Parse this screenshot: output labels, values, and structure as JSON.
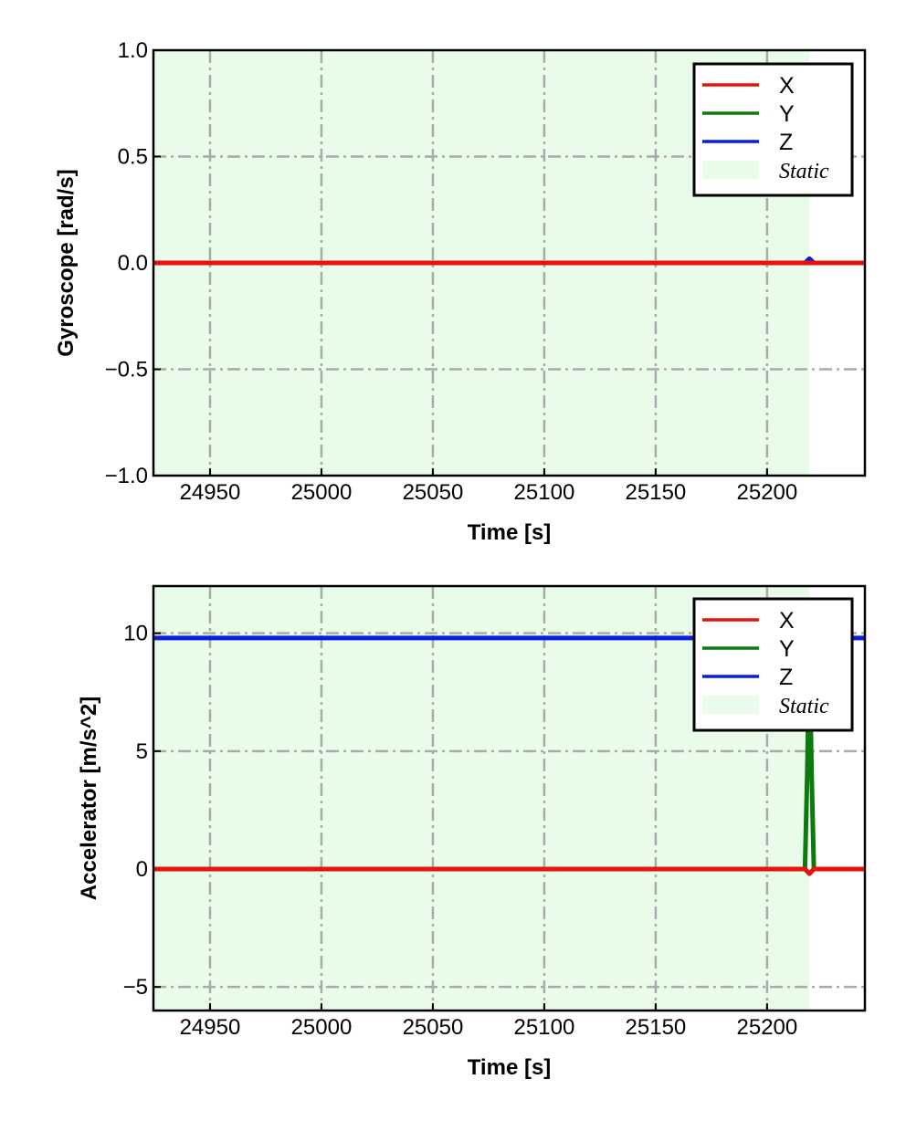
{
  "chart_data": [
    {
      "type": "line",
      "xlabel": "Time [s]",
      "ylabel": "Gyroscope [rad/s]",
      "xlim": [
        24924.6,
        25243.9
      ],
      "ylim": [
        -1.0,
        1.0
      ],
      "xticks": [
        24950,
        25000,
        25050,
        25100,
        25150,
        25200
      ],
      "xtick_labels": [
        "24950",
        "25000",
        "25050",
        "25100",
        "25150",
        "25200"
      ],
      "yticks": [
        -1.0,
        -0.5,
        0.0,
        0.5,
        1.0
      ],
      "ytick_labels": [
        "−1.0",
        "−0.5",
        "0.0",
        "0.5",
        "1.0"
      ],
      "grid": true,
      "legend_position": "top-right",
      "static_region": {
        "label": "Static",
        "x_start": 24924.6,
        "x_end": 25218.9,
        "color": "#e9fce9"
      },
      "x": [
        24925,
        25000,
        25100,
        25200,
        25217,
        25218,
        25219,
        25220,
        25221,
        25230,
        25244
      ],
      "series": [
        {
          "name": "X",
          "color": "#e8120c",
          "values": [
            0,
            0,
            0,
            0,
            0,
            0,
            0,
            0,
            0,
            0,
            0
          ]
        },
        {
          "name": "Y",
          "color": "#0d7a0d",
          "values": [
            0,
            0,
            0,
            0,
            0,
            0,
            0,
            0,
            0,
            0,
            0
          ]
        },
        {
          "name": "Z",
          "color": "#0a1ee0",
          "values": [
            0,
            0,
            0,
            0,
            0,
            0.01,
            0.02,
            0.01,
            0,
            0,
            0
          ]
        }
      ]
    },
    {
      "type": "line",
      "xlabel": "Time [s]",
      "ylabel": "Accelerator [m/s^2]",
      "xlim": [
        24924.6,
        25243.9
      ],
      "ylim": [
        -6,
        12
      ],
      "xticks": [
        24950,
        25000,
        25050,
        25100,
        25150,
        25200
      ],
      "xtick_labels": [
        "24950",
        "25000",
        "25050",
        "25100",
        "25150",
        "25200"
      ],
      "yticks": [
        -5,
        0,
        5,
        10
      ],
      "ytick_labels": [
        "−5",
        "0",
        "5",
        "10"
      ],
      "grid": true,
      "legend_position": "top-right",
      "static_region": {
        "label": "Static",
        "x_start": 24924.6,
        "x_end": 25218.9,
        "color": "#e9fce9"
      },
      "x": [
        24925,
        25000,
        25100,
        25200,
        25217,
        25218,
        25219,
        25220,
        25221,
        25230,
        25244
      ],
      "series": [
        {
          "name": "X",
          "color": "#e8120c",
          "values": [
            0,
            0,
            0,
            0,
            0,
            -0.1,
            -0.2,
            -0.1,
            0,
            0,
            0
          ]
        },
        {
          "name": "Y",
          "color": "#0d7a0d",
          "values": [
            0,
            0,
            0,
            0,
            0,
            4,
            9.5,
            4,
            0,
            0,
            0
          ]
        },
        {
          "name": "Z",
          "color": "#0a1ee0",
          "values": [
            9.8,
            9.8,
            9.8,
            9.8,
            9.8,
            9.8,
            9.8,
            9.8,
            9.8,
            9.8,
            9.8
          ]
        }
      ]
    }
  ]
}
